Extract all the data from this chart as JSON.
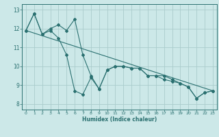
{
  "xlabel": "Humidex (Indice chaleur)",
  "ylabel": "",
  "bg_color": "#cce8e8",
  "grid_color": "#aacccc",
  "line_color": "#2a7070",
  "xlim": [
    -0.5,
    23.5
  ],
  "ylim": [
    7.7,
    13.3
  ],
  "xticks": [
    0,
    1,
    2,
    3,
    4,
    5,
    6,
    7,
    8,
    9,
    10,
    11,
    12,
    13,
    14,
    15,
    16,
    17,
    18,
    19,
    20,
    21,
    22,
    23
  ],
  "yticks": [
    8,
    9,
    10,
    11,
    12,
    13
  ],
  "series1_x": [
    0,
    1,
    2,
    3,
    4,
    5,
    6,
    7,
    8,
    9,
    10,
    11,
    12,
    13,
    14,
    15,
    16,
    17,
    18,
    19,
    20,
    21,
    22,
    23
  ],
  "series1_y": [
    11.9,
    12.8,
    11.7,
    11.9,
    11.5,
    10.6,
    8.7,
    8.5,
    9.4,
    8.8,
    9.8,
    10.0,
    10.0,
    9.9,
    9.9,
    9.5,
    9.5,
    9.5,
    9.3,
    9.1,
    8.9,
    8.3,
    8.6,
    8.7
  ],
  "series2_x": [
    0,
    1,
    2,
    3,
    4,
    5,
    6,
    7,
    8,
    9,
    10,
    11,
    12,
    13,
    14,
    15,
    16,
    17,
    18,
    19,
    20,
    21,
    22,
    23
  ],
  "series2_y": [
    11.9,
    12.8,
    11.7,
    12.0,
    12.2,
    11.9,
    12.5,
    10.6,
    9.5,
    8.8,
    9.8,
    10.0,
    10.0,
    9.9,
    9.9,
    9.5,
    9.5,
    9.3,
    9.2,
    9.1,
    8.9,
    8.3,
    8.6,
    8.7
  ],
  "trend_x": [
    0,
    23
  ],
  "trend_y": [
    11.9,
    8.7
  ]
}
